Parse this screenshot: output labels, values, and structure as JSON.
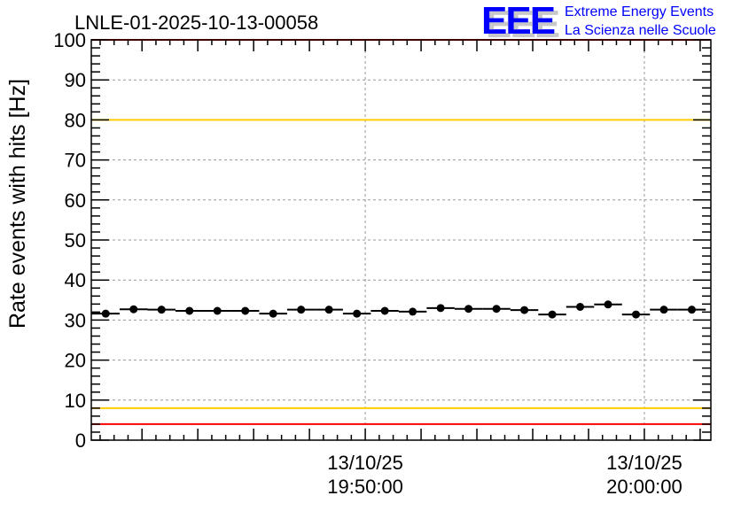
{
  "title": "LNLE-01-2025-10-13-00058",
  "logo": {
    "text": "EEE",
    "line1": "Extreme Energy Events",
    "line2": "La Scienza nelle Scuole"
  },
  "chart_data": {
    "type": "scatter",
    "title": "LNLE-01-2025-10-13-00058",
    "xlabel": "",
    "ylabel": "Rate events with hits [Hz]",
    "ylim": [
      0,
      100
    ],
    "xlim_seconds_from_19_50_00": [
      -589,
      743
    ],
    "bin_width_seconds": 60,
    "x_seconds_from_19_50_00": [
      -558,
      -498,
      -438,
      -378,
      -318,
      -258,
      -198,
      -138,
      -78,
      -18,
      42,
      102,
      162,
      222,
      282,
      342,
      402,
      462,
      522,
      582,
      642,
      702
    ],
    "values": [
      31.6,
      32.7,
      32.6,
      32.3,
      32.3,
      32.3,
      31.6,
      32.6,
      32.6,
      31.6,
      32.3,
      32.1,
      33.0,
      32.8,
      32.8,
      32.5,
      31.4,
      33.3,
      33.9,
      31.4,
      32.6,
      32.6
    ],
    "yticks": [
      "0",
      "10",
      "20",
      "30",
      "40",
      "50",
      "60",
      "70",
      "80",
      "90",
      "100"
    ],
    "xticks": [
      {
        "seconds": 0,
        "date": "13/10/25",
        "time": "19:50:00"
      },
      {
        "seconds": 600,
        "date": "13/10/25",
        "time": "20:00:00"
      }
    ],
    "hlines": [
      {
        "y": 100,
        "color": "#ff0000"
      },
      {
        "y": 4,
        "color": "#ff0000"
      },
      {
        "y": 80,
        "color": "#ffcc00"
      },
      {
        "y": 8,
        "color": "#ffcc00"
      }
    ],
    "grid": true
  }
}
